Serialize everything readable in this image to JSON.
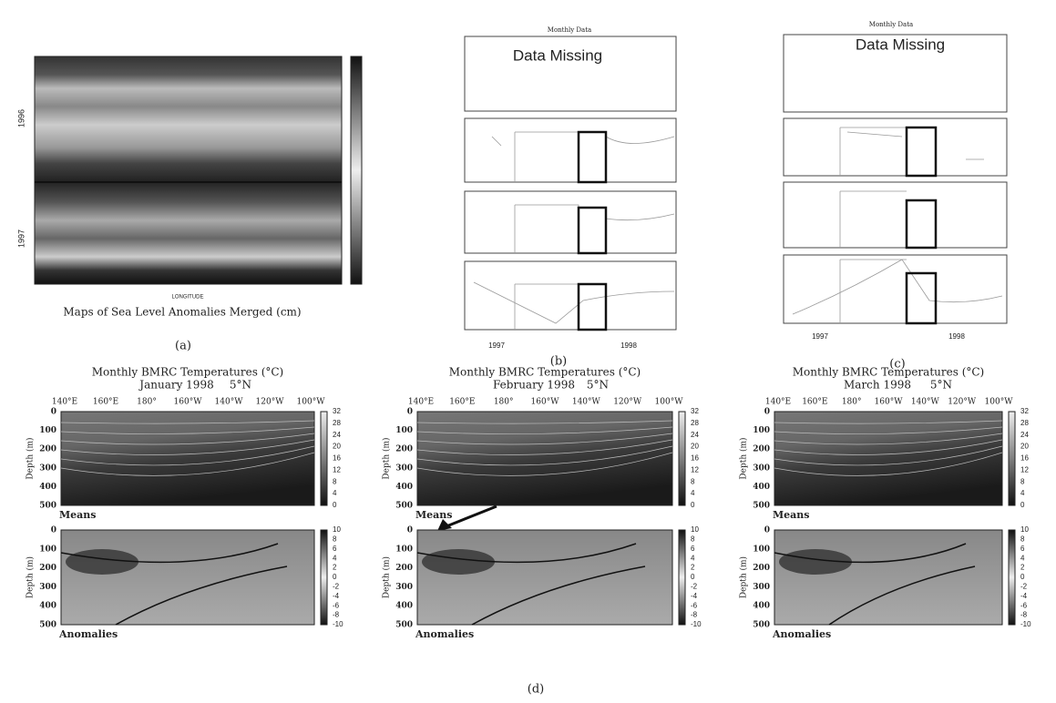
{
  "panel_a": {
    "caption": "Maps of Sea Level Anomalies Merged (cm)",
    "x_axis_title": "LONGITUDE",
    "years": [
      "1996",
      "1997"
    ],
    "label": "(a)"
  },
  "panel_b": {
    "title": "Monthly Data",
    "note": "Data Missing",
    "years": [
      "1997",
      "1998"
    ],
    "label": "(b)"
  },
  "panel_c": {
    "title": "Monthly Data",
    "note": "Data Missing",
    "years": [
      "1997",
      "1998"
    ],
    "label": "(c)"
  },
  "panel_d": {
    "title": "Monthly BMRC Temperatures (°C)",
    "months": [
      "January 1998",
      "February 1998",
      "March 1998"
    ],
    "latitude": "5°N",
    "x_ticks": [
      "140°E",
      "160°E",
      "180°",
      "160°W",
      "140°W",
      "120°W",
      "100°W"
    ],
    "y_ticks": [
      0,
      100,
      200,
      300,
      400,
      500
    ],
    "y_axis_title": "Depth (m)",
    "means_label": "Means",
    "anomalies_label": "Anomalies",
    "means_scale": [
      32,
      28,
      24,
      20,
      16,
      12,
      8,
      4,
      0
    ],
    "anomalies_scale": [
      10,
      8,
      6,
      4,
      2,
      0,
      -2,
      -4,
      -6,
      -8,
      -10
    ],
    "label": "(d)"
  }
}
